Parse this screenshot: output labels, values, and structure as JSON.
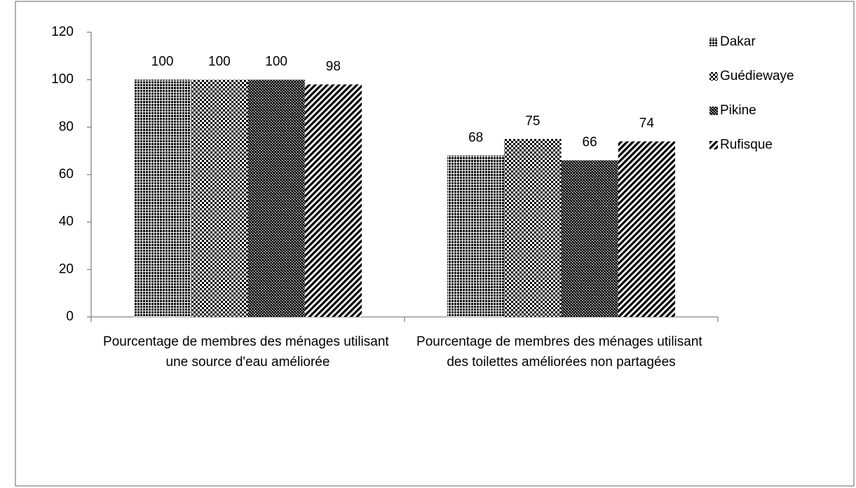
{
  "chart_data": {
    "type": "bar",
    "categories": [
      "Pourcentage de membres des ménages utilisant une source d'eau améliorée",
      "Pourcentage de membres des ménages utilisant des toilettes améliorées non partagées"
    ],
    "series": [
      {
        "name": "Dakar",
        "color": "#000000",
        "pattern": "grid",
        "values": [
          100,
          68
        ]
      },
      {
        "name": "Guédiewaye",
        "color": "#000000",
        "pattern": "checker",
        "values": [
          100,
          75
        ]
      },
      {
        "name": "Pikine",
        "color": "#000000",
        "pattern": "dense-checker",
        "values": [
          100,
          66
        ]
      },
      {
        "name": "Rufisque",
        "color": "#000000",
        "pattern": "diagonal",
        "values": [
          98,
          74
        ]
      }
    ],
    "ylim": [
      0,
      120
    ],
    "yticks": [
      0,
      20,
      40,
      60,
      80,
      100,
      120
    ],
    "grid": false,
    "legend": "right"
  }
}
